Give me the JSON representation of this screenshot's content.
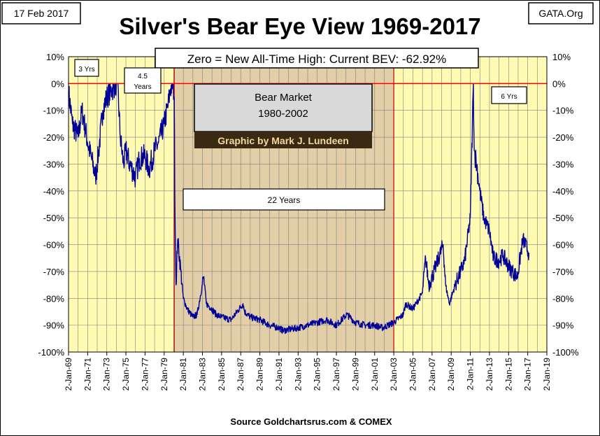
{
  "chart_data": {
    "type": "line",
    "title": "Silver's Bear Eye View 1969-2017",
    "date_label": "17 Feb 2017",
    "site_label": "GATA.Org",
    "subtitle": "Zero = New All-Time High: Current BEV: -62.92%",
    "source": "Source Goldchartsrus.com & COMEX",
    "credit": "Graphic by Mark J. Lundeen",
    "shaded_region": {
      "label": "Bear Market\n1980-2002",
      "start": "1980-01-21",
      "end": "2003-01-01"
    },
    "duration_labels": [
      "3 Yrs",
      "4.5\nYears",
      "22 Years",
      "6 Yrs"
    ],
    "y_ticks": [
      "10%",
      "0%",
      "-10%",
      "-20%",
      "-30%",
      "-40%",
      "-50%",
      "-60%",
      "-70%",
      "-80%",
      "-90%",
      "-100%"
    ],
    "x_ticks": [
      "2-Jan-69",
      "2-Jan-71",
      "2-Jan-73",
      "2-Jan-75",
      "2-Jan-77",
      "2-Jan-79",
      "2-Jan-81",
      "2-Jan-83",
      "2-Jan-85",
      "2-Jan-87",
      "2-Jan-89",
      "2-Jan-91",
      "2-Jan-93",
      "2-Jan-95",
      "2-Jan-97",
      "2-Jan-99",
      "2-Jan-01",
      "2-Jan-03",
      "2-Jan-05",
      "2-Jan-07",
      "2-Jan-09",
      "2-Jan-11",
      "2-Jan-13",
      "2-Jan-15",
      "2-Jan-17",
      "2-Jan-19"
    ],
    "xlim": [
      "1969-01-02",
      "2019-01-02"
    ],
    "ylim": [
      -100,
      10
    ],
    "grid": true,
    "zero_line_color": "#ff0000",
    "series_color": "#000099",
    "plot_bg": "#fffbb3",
    "shade_bg": "#e3cfa7",
    "series": [
      {
        "x": [
          "1969-01-02",
          "1969-06-01",
          "1970-01-01",
          "1970-06-01",
          "1971-01-01",
          "1971-06-01",
          "1971-11-01",
          "1972-03-01",
          "1972-08-01",
          "1973-01-01",
          "1973-06-01",
          "1974-01-01",
          "1974-02-20",
          "1974-06-01",
          "1974-10-01",
          "1975-01-01",
          "1975-06-01",
          "1976-01-01",
          "1976-06-01",
          "1977-01-01",
          "1977-06-01",
          "1978-01-01",
          "1978-06-01",
          "1979-01-01",
          "1979-06-01",
          "1979-09-01",
          "1979-12-01",
          "1980-01-18",
          "1980-02-20",
          "1980-03-28",
          "1980-06-01",
          "1980-10-01",
          "1981-01-01",
          "1981-06-01",
          "1982-01-01",
          "1982-06-15",
          "1983-02-15",
          "1983-06-01",
          "1984-01-01",
          "1984-06-01",
          "1985-01-01",
          "1986-01-01",
          "1987-04-01",
          "1987-06-01",
          "1988-01-01",
          "1989-01-01",
          "1990-01-01",
          "1991-01-01",
          "1991-06-01",
          "1993-01-01",
          "1994-01-01",
          "1995-01-01",
          "1996-01-01",
          "1997-01-01",
          "1998-02-01",
          "1998-06-01",
          "1999-01-01",
          "2000-01-01",
          "2001-01-01",
          "2001-11-01",
          "2002-06-01",
          "2003-01-01",
          "2004-01-01",
          "2004-04-01",
          "2005-01-01",
          "2006-01-01",
          "2006-05-01",
          "2006-09-01",
          "2007-01-01",
          "2007-06-01",
          "2008-03-01",
          "2008-06-01",
          "2008-10-25",
          "2009-06-01",
          "2010-01-01",
          "2010-06-01",
          "2011-01-01",
          "2011-04-28",
          "2011-06-01",
          "2011-09-01",
          "2012-01-01",
          "2012-06-01",
          "2013-01-01",
          "2013-06-01",
          "2014-01-01",
          "2014-06-01",
          "2015-01-01",
          "2015-06-01",
          "2015-12-01",
          "2016-07-01",
          "2017-02-17"
        ],
        "y": [
          -3,
          -15,
          -20,
          -10,
          -22,
          -28,
          -35,
          -25,
          -10,
          -5,
          -3,
          0,
          0,
          -20,
          -30,
          -25,
          -30,
          -35,
          -28,
          -27,
          -32,
          -25,
          -22,
          -15,
          -8,
          -2,
          0,
          -5,
          -50,
          -75,
          -58,
          -70,
          -80,
          -84,
          -87,
          -86,
          -72,
          -82,
          -84,
          -86,
          -87,
          -88,
          -82,
          -85,
          -87,
          -88,
          -90,
          -91,
          -92,
          -91,
          -90,
          -89,
          -88,
          -90,
          -86,
          -87,
          -89,
          -90,
          -90,
          -91,
          -90,
          -89,
          -86,
          -82,
          -84,
          -78,
          -65,
          -75,
          -72,
          -68,
          -60,
          -75,
          -82,
          -75,
          -70,
          -66,
          -50,
          0,
          -25,
          -30,
          -40,
          -50,
          -55,
          -65,
          -66,
          -64,
          -68,
          -70,
          -72,
          -58,
          -63
        ]
      }
    ]
  }
}
